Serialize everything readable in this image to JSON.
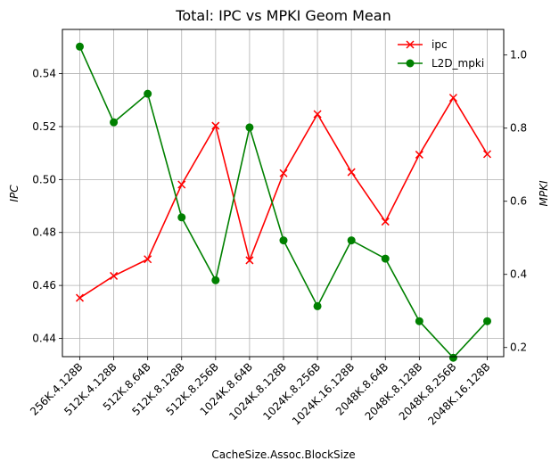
{
  "chart_data": {
    "type": "line",
    "title": "Total: IPC vs MPKI Geom Mean",
    "xlabel": "CacheSize.Assoc.BlockSize",
    "ylabel_left": "IPC",
    "ylabel_right": "MPKI",
    "categories": [
      "256K.4.128B",
      "512K.4.128B",
      "512K.8.64B",
      "512K.8.128B",
      "512K.8.256B",
      "1024K.8.64B",
      "1024K.8.128B",
      "1024K.8.256B",
      "1024K.16.128B",
      "2048K.8.64B",
      "2048K.8.128B",
      "2048K.8.256B",
      "2048K.16.128B"
    ],
    "left_axis": {
      "ylim": [
        0.4331,
        0.5567
      ],
      "ticks": [
        0.44,
        0.46,
        0.48,
        0.5,
        0.52,
        0.54
      ]
    },
    "right_axis": {
      "ylim": [
        0.175,
        1.07
      ],
      "ticks": [
        0.2,
        0.4,
        0.6,
        0.8,
        1.0
      ]
    },
    "series": [
      {
        "name": "ipc",
        "axis": "left",
        "color": "#ff0000",
        "marker": "x",
        "values": [
          0.4553,
          0.4636,
          0.4699,
          0.4981,
          0.5203,
          0.4695,
          0.5024,
          0.5247,
          0.5028,
          0.4841,
          0.5094,
          0.5309,
          0.5096
        ]
      },
      {
        "name": "L2D_mpki",
        "axis": "right",
        "color": "#008000",
        "marker": "o",
        "values": [
          1.023,
          0.816,
          0.894,
          0.556,
          0.384,
          0.802,
          0.493,
          0.313,
          0.493,
          0.443,
          0.272,
          0.172,
          0.272
        ]
      }
    ],
    "grid": true,
    "legend_position": "top-right"
  }
}
